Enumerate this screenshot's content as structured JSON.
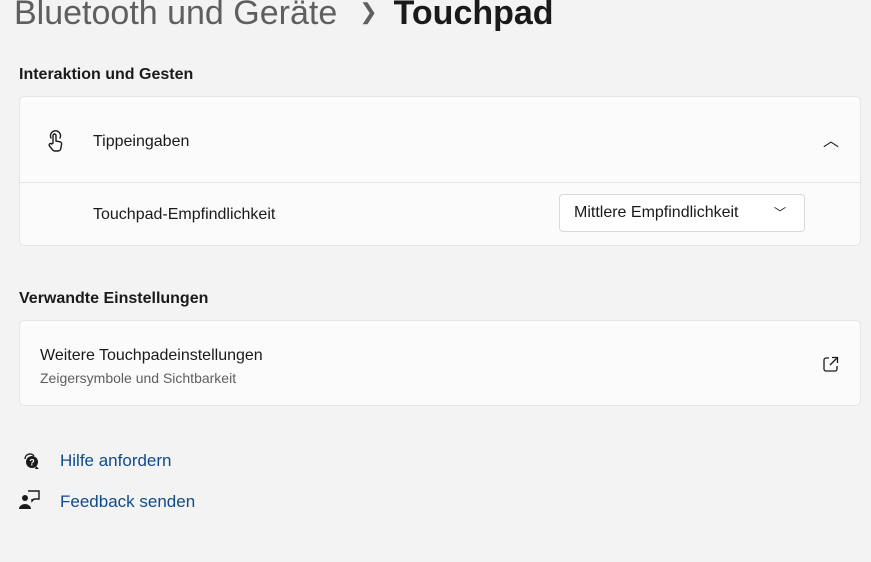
{
  "breadcrumb": {
    "parent": "Bluetooth und Geräte",
    "current": "Touchpad"
  },
  "section1": {
    "title": "Interaktion und Gesten",
    "expander": {
      "label": "Tippeingaben",
      "icon": "tap-hand-icon",
      "expanded": true
    },
    "setting": {
      "label": "Touchpad-Empfindlichkeit",
      "value": "Mittlere Empfindlichkeit"
    }
  },
  "section2": {
    "title": "Verwandte Einstellungen",
    "item": {
      "title": "Weitere Touchpadeinstellungen",
      "subtitle": "Zeigersymbole und Sichtbarkeit",
      "icon": "external-link-icon"
    }
  },
  "links": [
    {
      "label": "Hilfe anfordern",
      "icon": "help-chat-icon"
    },
    {
      "label": "Feedback senden",
      "icon": "feedback-icon"
    }
  ],
  "colors": {
    "link": "#0f4a8a",
    "background": "#f3f3f3"
  }
}
